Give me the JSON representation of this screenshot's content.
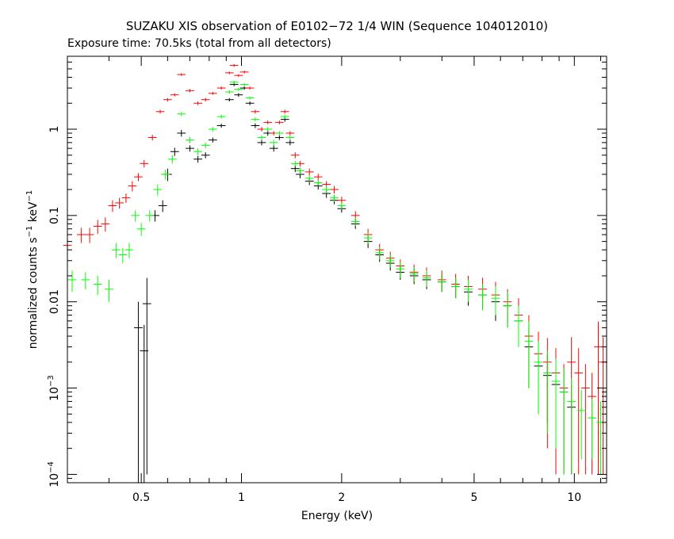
{
  "chart_data": {
    "type": "scatter",
    "title": "SUZAKU XIS observation of E0102−72 1/4 WIN (Sequence 104012010)",
    "subtitle": "Exposure time: 70.5ks (total from all detectors)",
    "xlabel": "Energy (keV)",
    "ylabel_main": "normalized counts s",
    "ylabel_exp1": "−1",
    "ylabel_mid": " keV",
    "ylabel_exp2": "−1",
    "x_scale": "log",
    "y_scale": "log",
    "xlim": [
      0.3,
      12.5
    ],
    "ylim": [
      8e-05,
      7
    ],
    "grid": false,
    "x_ticks": [
      {
        "value": 0.5,
        "label": "0.5"
      },
      {
        "value": 1,
        "label": "1"
      },
      {
        "value": 2,
        "label": "2"
      },
      {
        "value": 5,
        "label": "5"
      },
      {
        "value": 10,
        "label": "10"
      }
    ],
    "y_ticks": [
      {
        "value": 1,
        "label": "1"
      },
      {
        "value": 0.1,
        "label": "0.1"
      },
      {
        "value": 0.01,
        "label": "0.01"
      },
      {
        "value": 0.001,
        "label": "10",
        "exp": "−3"
      },
      {
        "value": 0.0001,
        "label": "10",
        "exp": "−4"
      }
    ],
    "series": [
      {
        "color": "#000000",
        "points": [
          [
            0.49,
            0.005,
            0.005
          ],
          [
            0.51,
            0.0027,
            0.0027
          ],
          [
            0.52,
            0.0095,
            0.0094
          ],
          [
            0.55,
            0.1,
            0.015
          ],
          [
            0.58,
            0.13,
            0.02
          ],
          [
            0.6,
            0.3,
            0.05
          ],
          [
            0.63,
            0.55,
            0.06
          ],
          [
            0.66,
            0.9,
            0.08
          ],
          [
            0.7,
            0.6,
            0.05
          ],
          [
            0.74,
            0.45,
            0.04
          ],
          [
            0.78,
            0.5,
            0.04
          ],
          [
            0.82,
            0.75,
            0.05
          ],
          [
            0.87,
            1.1,
            0.06
          ],
          [
            0.92,
            2.2,
            0.1
          ],
          [
            0.95,
            3.3,
            0.15
          ],
          [
            0.98,
            2.5,
            0.12
          ],
          [
            1.02,
            3.0,
            0.13
          ],
          [
            1.06,
            2.0,
            0.1
          ],
          [
            1.1,
            1.1,
            0.07
          ],
          [
            1.15,
            0.7,
            0.05
          ],
          [
            1.2,
            0.9,
            0.06
          ],
          [
            1.25,
            0.6,
            0.05
          ],
          [
            1.3,
            0.8,
            0.05
          ],
          [
            1.35,
            1.3,
            0.08
          ],
          [
            1.4,
            0.7,
            0.05
          ],
          [
            1.45,
            0.35,
            0.03
          ],
          [
            1.5,
            0.3,
            0.03
          ],
          [
            1.6,
            0.25,
            0.025
          ],
          [
            1.7,
            0.22,
            0.02
          ],
          [
            1.8,
            0.18,
            0.02
          ],
          [
            1.9,
            0.15,
            0.015
          ],
          [
            2.0,
            0.12,
            0.012
          ],
          [
            2.2,
            0.08,
            0.01
          ],
          [
            2.4,
            0.05,
            0.008
          ],
          [
            2.6,
            0.035,
            0.006
          ],
          [
            2.8,
            0.028,
            0.005
          ],
          [
            3.0,
            0.022,
            0.004
          ],
          [
            3.3,
            0.02,
            0.004
          ],
          [
            3.6,
            0.018,
            0.004
          ],
          [
            4.0,
            0.017,
            0.004
          ],
          [
            4.4,
            0.015,
            0.004
          ],
          [
            4.8,
            0.013,
            0.004
          ],
          [
            5.3,
            0.012,
            0.004
          ],
          [
            5.8,
            0.01,
            0.004
          ],
          [
            6.3,
            0.009,
            0.004
          ],
          [
            6.8,
            0.006,
            0.003
          ],
          [
            7.3,
            0.003,
            0.002
          ],
          [
            7.8,
            0.0018,
            0.0012
          ],
          [
            8.3,
            0.0014,
            0.001
          ],
          [
            8.8,
            0.0011,
            0.0009
          ],
          [
            9.3,
            0.0009,
            0.0008
          ],
          [
            9.8,
            0.0006,
            0.0005
          ]
        ]
      },
      {
        "color": "#ff0000",
        "points": [
          [
            0.3,
            0.045,
            0.01
          ],
          [
            0.33,
            0.06,
            0.012
          ],
          [
            0.35,
            0.06,
            0.012
          ],
          [
            0.37,
            0.075,
            0.014
          ],
          [
            0.39,
            0.08,
            0.015
          ],
          [
            0.41,
            0.13,
            0.02
          ],
          [
            0.43,
            0.14,
            0.02
          ],
          [
            0.45,
            0.16,
            0.02
          ],
          [
            0.47,
            0.22,
            0.03
          ],
          [
            0.49,
            0.28,
            0.03
          ],
          [
            0.51,
            0.4,
            0.04
          ],
          [
            0.54,
            0.8,
            0.06
          ],
          [
            0.57,
            1.6,
            0.08
          ],
          [
            0.6,
            2.2,
            0.1
          ],
          [
            0.63,
            2.5,
            0.1
          ],
          [
            0.66,
            4.3,
            0.15
          ],
          [
            0.7,
            2.8,
            0.12
          ],
          [
            0.74,
            2.0,
            0.1
          ],
          [
            0.78,
            2.2,
            0.1
          ],
          [
            0.82,
            2.6,
            0.1
          ],
          [
            0.87,
            3.0,
            0.12
          ],
          [
            0.92,
            4.5,
            0.15
          ],
          [
            0.95,
            5.5,
            0.2
          ],
          [
            0.98,
            4.2,
            0.15
          ],
          [
            1.02,
            4.6,
            0.18
          ],
          [
            1.06,
            3.0,
            0.12
          ],
          [
            1.1,
            1.6,
            0.08
          ],
          [
            1.15,
            1.0,
            0.06
          ],
          [
            1.2,
            1.2,
            0.06
          ],
          [
            1.25,
            0.9,
            0.05
          ],
          [
            1.3,
            1.2,
            0.06
          ],
          [
            1.35,
            1.6,
            0.08
          ],
          [
            1.4,
            0.9,
            0.05
          ],
          [
            1.45,
            0.5,
            0.04
          ],
          [
            1.5,
            0.4,
            0.03
          ],
          [
            1.6,
            0.32,
            0.03
          ],
          [
            1.7,
            0.28,
            0.025
          ],
          [
            1.8,
            0.23,
            0.02
          ],
          [
            1.9,
            0.2,
            0.02
          ],
          [
            2.0,
            0.15,
            0.015
          ],
          [
            2.2,
            0.1,
            0.012
          ],
          [
            2.4,
            0.06,
            0.01
          ],
          [
            2.6,
            0.04,
            0.007
          ],
          [
            2.8,
            0.032,
            0.006
          ],
          [
            3.0,
            0.026,
            0.005
          ],
          [
            3.3,
            0.022,
            0.005
          ],
          [
            3.6,
            0.02,
            0.005
          ],
          [
            4.0,
            0.018,
            0.005
          ],
          [
            4.4,
            0.016,
            0.005
          ],
          [
            4.8,
            0.015,
            0.005
          ],
          [
            5.3,
            0.014,
            0.005
          ],
          [
            5.8,
            0.012,
            0.005
          ],
          [
            6.3,
            0.01,
            0.004
          ],
          [
            6.8,
            0.007,
            0.004
          ],
          [
            7.3,
            0.004,
            0.003
          ],
          [
            7.8,
            0.0025,
            0.002
          ],
          [
            8.3,
            0.002,
            0.0018
          ],
          [
            8.8,
            0.0015,
            0.0014
          ],
          [
            9.3,
            0.001,
            0.0009
          ],
          [
            9.8,
            0.002,
            0.0019
          ],
          [
            10.3,
            0.0015,
            0.0014
          ],
          [
            10.8,
            0.001,
            0.0009
          ],
          [
            11.3,
            0.0008,
            0.0007
          ],
          [
            11.8,
            0.003,
            0.0029
          ],
          [
            12.2,
            0.002,
            0.0019
          ]
        ]
      },
      {
        "color": "#00ff00",
        "points": [
          [
            0.31,
            0.018,
            0.005
          ],
          [
            0.34,
            0.018,
            0.004
          ],
          [
            0.37,
            0.016,
            0.004
          ],
          [
            0.4,
            0.014,
            0.004
          ],
          [
            0.42,
            0.04,
            0.008
          ],
          [
            0.44,
            0.035,
            0.007
          ],
          [
            0.46,
            0.04,
            0.008
          ],
          [
            0.48,
            0.1,
            0.015
          ],
          [
            0.5,
            0.07,
            0.012
          ],
          [
            0.53,
            0.1,
            0.015
          ],
          [
            0.56,
            0.2,
            0.03
          ],
          [
            0.59,
            0.3,
            0.04
          ],
          [
            0.62,
            0.45,
            0.05
          ],
          [
            0.66,
            1.5,
            0.08
          ],
          [
            0.7,
            0.75,
            0.06
          ],
          [
            0.74,
            0.55,
            0.05
          ],
          [
            0.78,
            0.65,
            0.05
          ],
          [
            0.82,
            1.0,
            0.06
          ],
          [
            0.87,
            1.4,
            0.07
          ],
          [
            0.92,
            2.7,
            0.12
          ],
          [
            0.95,
            3.5,
            0.15
          ],
          [
            0.98,
            2.9,
            0.12
          ],
          [
            1.02,
            3.3,
            0.13
          ],
          [
            1.06,
            2.3,
            0.1
          ],
          [
            1.1,
            1.3,
            0.07
          ],
          [
            1.15,
            0.8,
            0.05
          ],
          [
            1.2,
            1.0,
            0.06
          ],
          [
            1.25,
            0.7,
            0.05
          ],
          [
            1.3,
            0.9,
            0.05
          ],
          [
            1.35,
            1.4,
            0.08
          ],
          [
            1.4,
            0.8,
            0.05
          ],
          [
            1.45,
            0.4,
            0.03
          ],
          [
            1.5,
            0.33,
            0.03
          ],
          [
            1.6,
            0.27,
            0.025
          ],
          [
            1.7,
            0.24,
            0.02
          ],
          [
            1.8,
            0.2,
            0.02
          ],
          [
            1.9,
            0.16,
            0.015
          ],
          [
            2.0,
            0.13,
            0.012
          ],
          [
            2.2,
            0.085,
            0.01
          ],
          [
            2.4,
            0.055,
            0.008
          ],
          [
            2.6,
            0.037,
            0.006
          ],
          [
            2.8,
            0.03,
            0.005
          ],
          [
            3.0,
            0.024,
            0.005
          ],
          [
            3.3,
            0.021,
            0.004
          ],
          [
            3.6,
            0.019,
            0.004
          ],
          [
            4.0,
            0.017,
            0.004
          ],
          [
            4.4,
            0.015,
            0.004
          ],
          [
            4.8,
            0.014,
            0.004
          ],
          [
            5.3,
            0.012,
            0.004
          ],
          [
            5.8,
            0.011,
            0.004
          ],
          [
            6.3,
            0.009,
            0.004
          ],
          [
            6.8,
            0.006,
            0.003
          ],
          [
            7.3,
            0.0035,
            0.0025
          ],
          [
            7.8,
            0.002,
            0.0015
          ],
          [
            8.3,
            0.0015,
            0.0012
          ],
          [
            8.8,
            0.0012,
            0.001
          ],
          [
            9.3,
            0.0009,
            0.0008
          ],
          [
            9.8,
            0.0007,
            0.0006
          ],
          [
            10.5,
            0.00055,
            0.0004
          ],
          [
            11.3,
            0.00045,
            0.0003
          ],
          [
            12.0,
            0.0004,
            0.0003
          ]
        ]
      }
    ]
  }
}
